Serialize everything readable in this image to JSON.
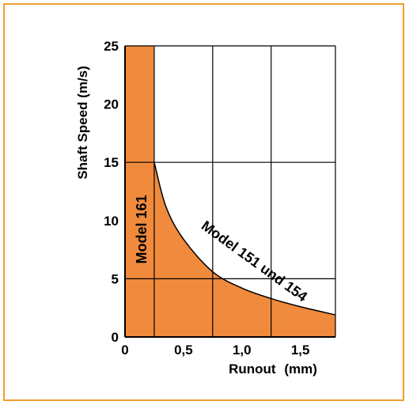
{
  "chart_data": {
    "type": "area",
    "xlabel": "Runout",
    "xlabel_unit": "(mm)",
    "ylabel": "Shaft Speed (m/s)",
    "xlim": [
      0,
      1.8
    ],
    "ylim": [
      0,
      25
    ],
    "x_ticks": [
      "0",
      "0,5",
      "1,0",
      "1,5"
    ],
    "y_ticks": [
      "0",
      "5",
      "10",
      "15",
      "20",
      "25"
    ],
    "grid": true,
    "colors": {
      "fill": "#f08a3c",
      "frame": "#f0a030",
      "line": "#000000"
    },
    "series": [
      {
        "name": "Model 161",
        "x": [
          0,
          0.25,
          0.25,
          0
        ],
        "y": [
          0,
          0,
          25,
          25
        ]
      },
      {
        "name": "Model 151 und 154",
        "x": [
          0.25,
          0.35,
          0.5,
          0.75,
          1.0,
          1.25,
          1.5,
          1.8
        ],
        "y": [
          15,
          11.2,
          8.4,
          5.6,
          4.2,
          3.3,
          2.6,
          1.9
        ]
      }
    ]
  }
}
